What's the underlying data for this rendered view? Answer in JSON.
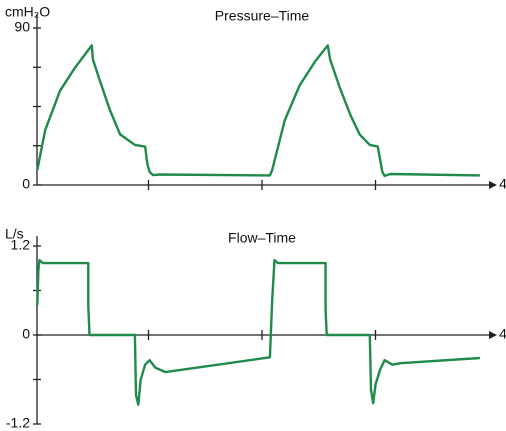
{
  "chart_data": [
    {
      "type": "line",
      "title": "Pressure–Time",
      "ylabel": "cmH₂O",
      "xlim": [
        0,
        4
      ],
      "ylim": [
        0,
        90
      ],
      "xticks": [
        {
          "value": 1,
          "label": null
        },
        {
          "value": 2,
          "label": null
        },
        {
          "value": 3,
          "label": null
        },
        4
      ],
      "yticks": [
        0,
        {
          "value": 22.5,
          "label": null
        },
        {
          "value": 45,
          "label": null
        },
        {
          "value": 67.5,
          "label": null
        },
        90
      ],
      "series": [
        {
          "name": null,
          "color": "#1f8a4c",
          "x": [
            0.02,
            0.09,
            0.22,
            0.35,
            0.5,
            0.51,
            0.57,
            0.66,
            0.75,
            0.88,
            0.97,
            0.99,
            1.01,
            1.04,
            1.1,
            2.07,
            2.09,
            2.2,
            2.33,
            2.47,
            2.58,
            2.6,
            2.69,
            2.78,
            2.86,
            2.95,
            3.02,
            3.06,
            3.08,
            3.13,
            3.92
          ],
          "values": [
            8.6,
            31.5,
            54,
            67,
            80,
            72,
            60,
            43,
            29,
            23,
            22,
            12,
            7.5,
            5.7,
            6,
            5.5,
            8.6,
            37,
            57,
            71,
            80,
            72,
            55,
            40,
            29,
            23,
            22,
            7.5,
            5.2,
            6.3,
            5.5
          ]
        }
      ]
    },
    {
      "type": "line",
      "title": "Flow–Time",
      "ylabel": "L/s",
      "xlim": [
        0,
        4
      ],
      "ylim": [
        -1.2,
        1.2
      ],
      "xticks": [
        {
          "value": 1,
          "label": null
        },
        {
          "value": 2,
          "label": null
        },
        {
          "value": 3,
          "label": null
        },
        4
      ],
      "yticks": [
        {
          "value": -1.2,
          "label": "-1.2"
        },
        {
          "value": -0.6,
          "label": null
        },
        0,
        {
          "value": 0.6,
          "label": null
        },
        {
          "value": 1.2,
          "label": "1.2"
        }
      ],
      "series": [
        {
          "name": null,
          "color": "#1f8a4c",
          "x": [
            0.02,
            0.03,
            0.04,
            0.07,
            0.47,
            0.47,
            0.48,
            0.88,
            0.89,
            0.91,
            0.93,
            0.97,
            1.01,
            1.06,
            1.15,
            2.07,
            2.09,
            2.11,
            2.14,
            2.56,
            2.56,
            2.57,
            2.95,
            2.96,
            2.98,
            3.0,
            3.04,
            3.08,
            3.15,
            3.22,
            3.92
          ],
          "values": [
            0.4,
            0.88,
            1.01,
            0.97,
            0.97,
            0.4,
            0,
            0,
            -0.81,
            -0.94,
            -0.61,
            -0.4,
            -0.34,
            -0.44,
            -0.5,
            -0.3,
            0.47,
            1.01,
            0.97,
            0.97,
            0.34,
            0,
            0,
            -0.74,
            -0.92,
            -0.67,
            -0.47,
            -0.34,
            -0.4,
            -0.38,
            -0.31
          ]
        }
      ]
    }
  ]
}
